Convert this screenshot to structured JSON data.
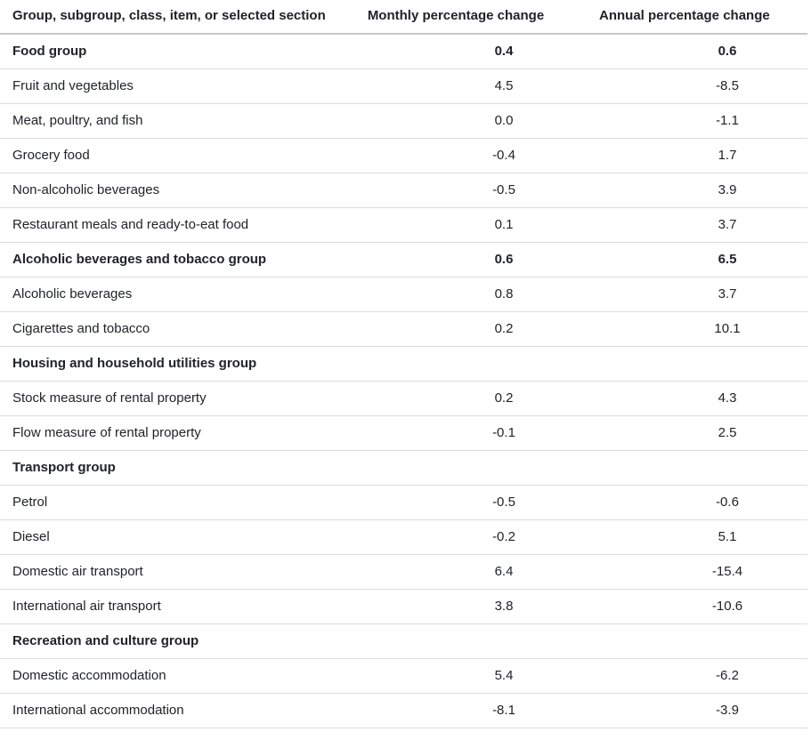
{
  "chart_data": {
    "type": "table",
    "columns": [
      {
        "label": "Group, subgroup, class, item, or selected section"
      },
      {
        "label": "Monthly percentage change"
      },
      {
        "label": "Annual percentage change"
      }
    ],
    "rows": [
      {
        "label": "Food group",
        "monthly": "0.4",
        "annual": "0.6",
        "is_group": true
      },
      {
        "label": "Fruit and vegetables",
        "monthly": "4.5",
        "annual": "-8.5",
        "is_group": false
      },
      {
        "label": "Meat, poultry, and fish",
        "monthly": "0.0",
        "annual": "-1.1",
        "is_group": false
      },
      {
        "label": "Grocery food",
        "monthly": "-0.4",
        "annual": "1.7",
        "is_group": false
      },
      {
        "label": "Non-alcoholic beverages",
        "monthly": "-0.5",
        "annual": "3.9",
        "is_group": false
      },
      {
        "label": "Restaurant meals and ready-to-eat food",
        "monthly": "0.1",
        "annual": "3.7",
        "is_group": false
      },
      {
        "label": "Alcoholic beverages and tobacco group",
        "monthly": "0.6",
        "annual": "6.5",
        "is_group": true
      },
      {
        "label": "Alcoholic beverages",
        "monthly": "0.8",
        "annual": "3.7",
        "is_group": false
      },
      {
        "label": "Cigarettes and tobacco",
        "monthly": "0.2",
        "annual": "10.1",
        "is_group": false
      },
      {
        "label": "Housing and household utilities group",
        "monthly": "",
        "annual": "",
        "is_group": true
      },
      {
        "label": "Stock measure of rental property",
        "monthly": "0.2",
        "annual": "4.3",
        "is_group": false
      },
      {
        "label": "Flow measure of rental property",
        "monthly": "-0.1",
        "annual": "2.5",
        "is_group": false
      },
      {
        "label": "Transport group",
        "monthly": "",
        "annual": "",
        "is_group": true
      },
      {
        "label": "Petrol",
        "monthly": "-0.5",
        "annual": "-0.6",
        "is_group": false
      },
      {
        "label": "Diesel",
        "monthly": "-0.2",
        "annual": "5.1",
        "is_group": false
      },
      {
        "label": "Domestic air transport",
        "monthly": "6.4",
        "annual": "-15.4",
        "is_group": false
      },
      {
        "label": "International air transport",
        "monthly": "3.8",
        "annual": "-10.6",
        "is_group": false
      },
      {
        "label": "Recreation and culture group",
        "monthly": "",
        "annual": "",
        "is_group": true
      },
      {
        "label": "Domestic accommodation",
        "monthly": "5.4",
        "annual": "-6.2",
        "is_group": false
      },
      {
        "label": "International accommodation",
        "monthly": "-8.1",
        "annual": "-3.9",
        "is_group": false
      }
    ],
    "colors": {
      "text": "#212328",
      "row_border": "#dcdcdc",
      "header_border": "#c9c9c9",
      "background": "#ffffff"
    },
    "layout": {
      "grid": "horizontal-row-separators-only",
      "numeric_alignment": "center"
    }
  }
}
